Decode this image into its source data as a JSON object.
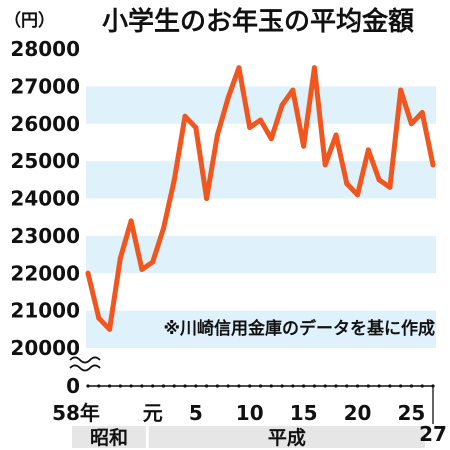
{
  "chart_data": {
    "type": "line",
    "title": "小学生のお年玉の平均金額",
    "y_unit": "（円）",
    "source_note": "※川崎信用金庫のデータを基に作成",
    "ylim": [
      20000,
      28000
    ],
    "yticks": [
      20000,
      21000,
      22000,
      23000,
      24000,
      25000,
      26000,
      27000,
      28000
    ],
    "y_zero_label": "0",
    "axis_break": true,
    "xticks": [
      {
        "year": 1983,
        "label": "58年"
      },
      {
        "year": 1989,
        "label": "元"
      },
      {
        "year": 1993,
        "label": "5"
      },
      {
        "year": 1998,
        "label": "10"
      },
      {
        "year": 2003,
        "label": "15"
      },
      {
        "year": 2008,
        "label": "20"
      },
      {
        "year": 2013,
        "label": "25"
      },
      {
        "year": 2015,
        "label": "27"
      }
    ],
    "eras": [
      {
        "name": "昭和",
        "start_year": 1983,
        "end_year": 1988
      },
      {
        "name": "平成",
        "start_year": 1989,
        "end_year": 2015
      }
    ],
    "line_color": "#f0561e",
    "band_color": "#dff1fb",
    "grid": "alternating horizontal bands",
    "series": [
      {
        "x": [
          1983,
          1984,
          1985,
          1986,
          1987,
          1988,
          1989,
          1990,
          1991,
          1992,
          1993,
          1994,
          1995,
          1996,
          1997,
          1998,
          1999,
          2000,
          2001,
          2002,
          2003,
          2004,
          2005,
          2006,
          2007,
          2008,
          2009,
          2010,
          2011,
          2012,
          2013,
          2014,
          2015
        ],
        "values": [
          22000,
          20800,
          20500,
          22400,
          23400,
          22100,
          22300,
          23200,
          24500,
          26200,
          25900,
          24000,
          25700,
          26700,
          27500,
          25900,
          26100,
          25600,
          26500,
          26900,
          25400,
          27500,
          24900,
          25700,
          24400,
          24100,
          25300,
          24500,
          24300,
          26900,
          26000,
          26300,
          24900
        ]
      }
    ]
  }
}
